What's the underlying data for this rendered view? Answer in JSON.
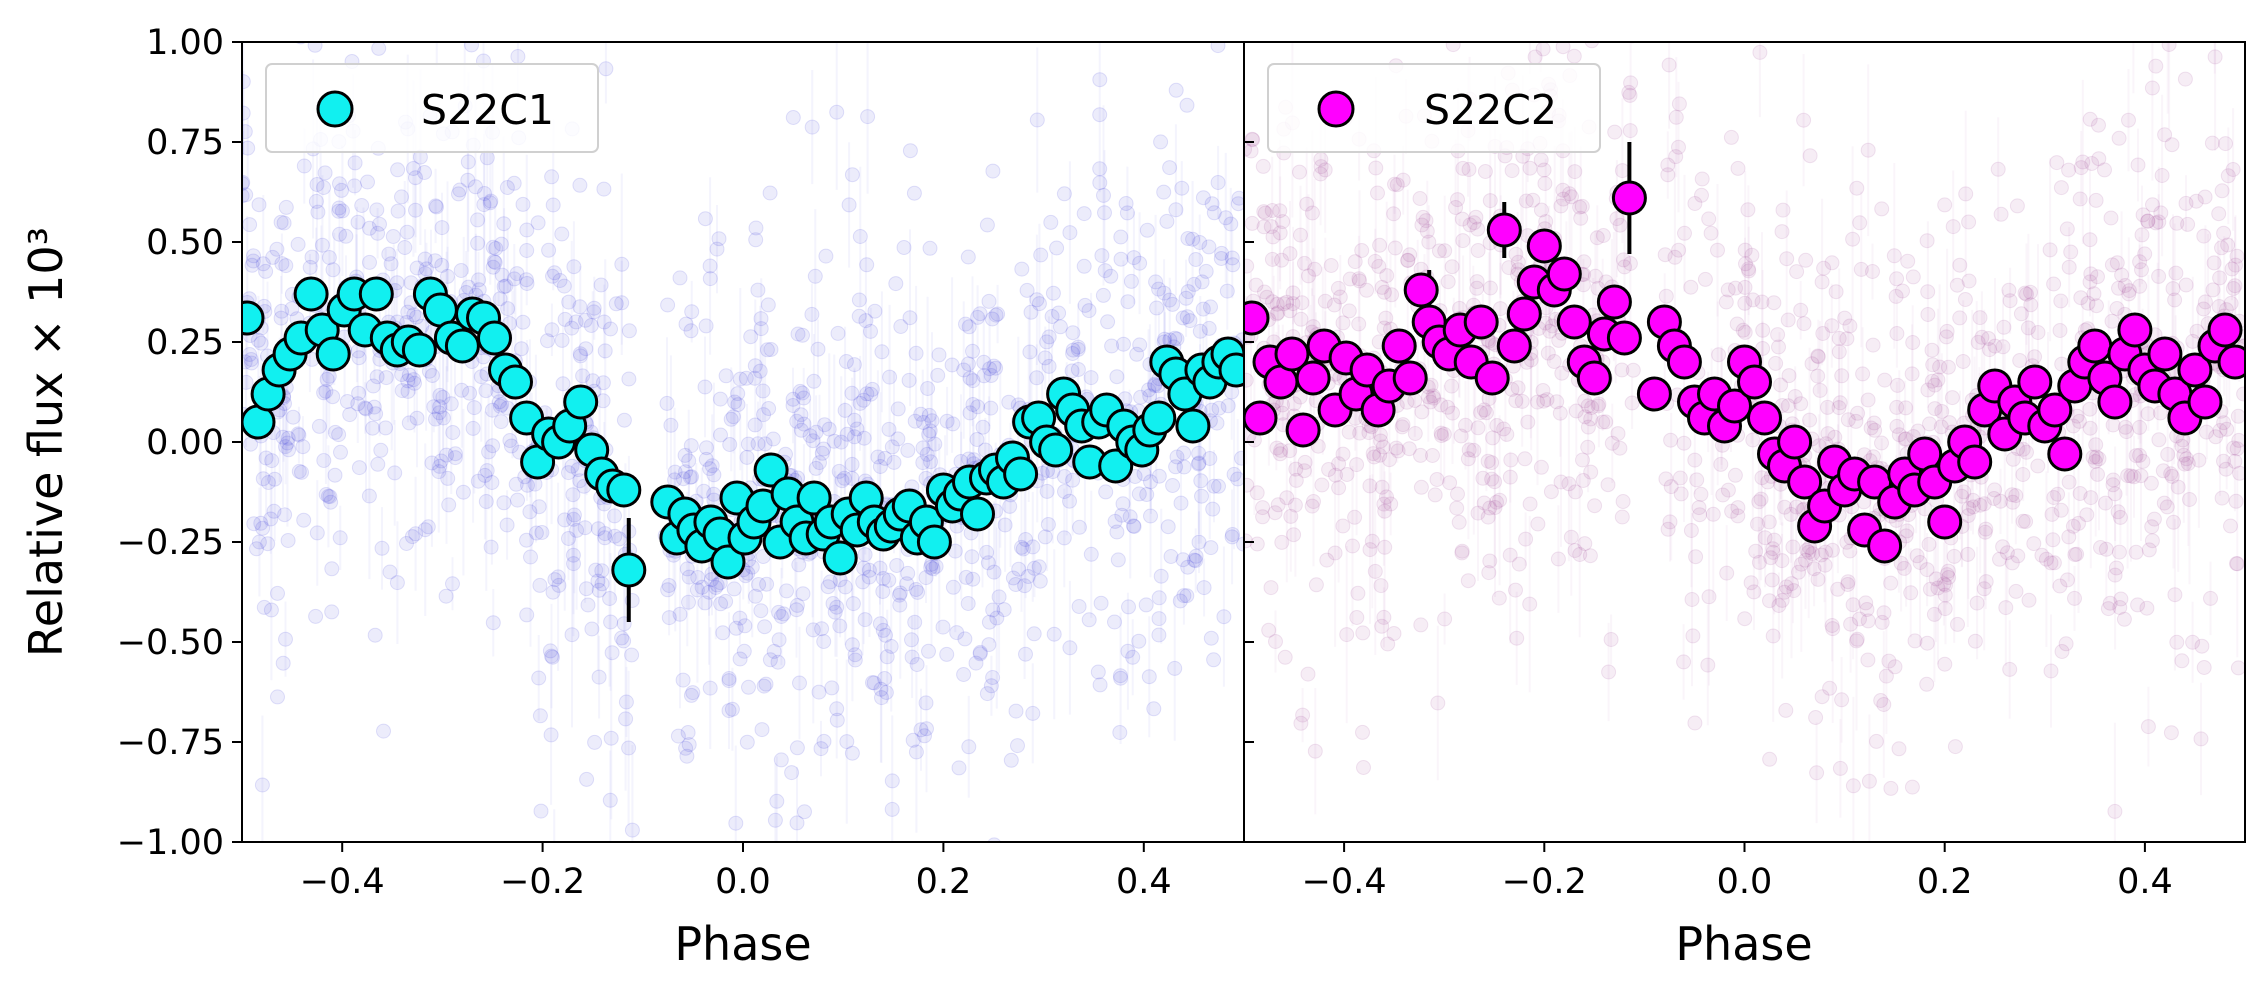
{
  "chart_data": [
    {
      "type": "scatter",
      "panel": "left",
      "xlabel": "Phase",
      "ylabel": "Relative flux × 10³",
      "xlim": [
        -0.5,
        0.5
      ],
      "ylim": [
        -1.0,
        1.0
      ],
      "xticks": [
        -0.4,
        -0.2,
        0.0,
        0.2,
        0.4
      ],
      "xtick_labels": [
        "−0.4",
        "−0.2",
        "0.0",
        "0.2",
        "0.4"
      ],
      "yticks": [
        -1.0,
        -0.75,
        -0.5,
        -0.25,
        0.0,
        0.25,
        0.5,
        0.75,
        1.0
      ],
      "ytick_labels": [
        "−1.00",
        "−0.75",
        "−0.50",
        "−0.25",
        "0.00",
        "0.25",
        "0.50",
        "0.75",
        "1.00"
      ],
      "legend": {
        "label": "S22C1",
        "location": "upper-left"
      },
      "gap": [
        -0.08,
        -0.11
      ],
      "raw_color": "#2a2ad8",
      "binned_color": "#11f0f0",
      "binned": {
        "x": [
          -0.495,
          -0.484,
          -0.474,
          -0.463,
          -0.452,
          -0.441,
          -0.431,
          -0.42,
          -0.409,
          -0.398,
          -0.388,
          -0.377,
          -0.366,
          -0.355,
          -0.345,
          -0.334,
          -0.323,
          -0.312,
          -0.302,
          -0.291,
          -0.28,
          -0.27,
          -0.259,
          -0.248,
          -0.237,
          -0.227,
          -0.216,
          -0.205,
          -0.194,
          -0.184,
          -0.173,
          -0.162,
          -0.151,
          -0.141,
          -0.13,
          -0.119,
          -0.114,
          -0.075,
          -0.066,
          -0.058,
          -0.049,
          -0.041,
          -0.032,
          -0.023,
          -0.015,
          -0.006,
          0.002,
          0.011,
          0.02,
          0.028,
          0.037,
          0.045,
          0.054,
          0.063,
          0.071,
          0.08,
          0.088,
          0.097,
          0.105,
          0.114,
          0.123,
          0.131,
          0.14,
          0.148,
          0.157,
          0.166,
          0.174,
          0.183,
          0.191,
          0.2,
          0.209,
          0.217,
          0.226,
          0.234,
          0.243,
          0.252,
          0.26,
          0.269,
          0.277,
          0.286,
          0.295,
          0.303,
          0.312,
          0.32,
          0.329,
          0.338,
          0.346,
          0.355,
          0.363,
          0.372,
          0.38,
          0.389,
          0.398,
          0.406,
          0.415,
          0.423,
          0.432,
          0.441,
          0.449,
          0.458,
          0.466,
          0.475,
          0.484,
          0.492
        ],
        "y": [
          0.31,
          0.05,
          0.12,
          0.18,
          0.22,
          0.26,
          0.37,
          0.28,
          0.22,
          0.33,
          0.37,
          0.28,
          0.37,
          0.26,
          0.23,
          0.25,
          0.23,
          0.37,
          0.33,
          0.26,
          0.24,
          0.32,
          0.31,
          0.26,
          0.18,
          0.15,
          0.06,
          -0.05,
          0.02,
          0.0,
          0.04,
          0.1,
          -0.02,
          -0.08,
          -0.11,
          -0.12,
          -0.32,
          -0.15,
          -0.24,
          -0.18,
          -0.22,
          -0.26,
          -0.2,
          -0.23,
          -0.3,
          -0.14,
          -0.24,
          -0.2,
          -0.16,
          -0.07,
          -0.25,
          -0.13,
          -0.2,
          -0.24,
          -0.14,
          -0.23,
          -0.2,
          -0.29,
          -0.18,
          -0.22,
          -0.14,
          -0.2,
          -0.23,
          -0.21,
          -0.18,
          -0.16,
          -0.24,
          -0.2,
          -0.25,
          -0.12,
          -0.16,
          -0.13,
          -0.1,
          -0.18,
          -0.09,
          -0.07,
          -0.1,
          -0.04,
          -0.08,
          0.05,
          0.06,
          0.0,
          -0.02,
          0.12,
          0.08,
          0.04,
          -0.05,
          0.05,
          0.08,
          -0.06,
          0.04,
          0.0,
          -0.02,
          0.03,
          0.06,
          0.2,
          0.17,
          0.12,
          0.04,
          0.18,
          0.15,
          0.2,
          0.22,
          0.18
        ],
        "errors": [
          {
            "x": -0.114,
            "y": -0.32,
            "err": 0.13
          }
        ]
      }
    },
    {
      "type": "scatter",
      "panel": "right",
      "xlabel": "Phase",
      "xlim": [
        -0.5,
        0.5
      ],
      "ylim": [
        -1.0,
        1.0
      ],
      "xticks": [
        -0.4,
        -0.2,
        0.0,
        0.2,
        0.4
      ],
      "xtick_labels": [
        "−0.4",
        "−0.2",
        "0.0",
        "0.2",
        "0.4"
      ],
      "legend": {
        "label": "S22C2",
        "location": "upper-left"
      },
      "gap": [
        -0.08,
        -0.11
      ],
      "raw_color": "#9c3a94",
      "binned_color": "#ff00ff",
      "binned": {
        "x": [
          -0.492,
          -0.484,
          -0.474,
          -0.463,
          -0.452,
          -0.441,
          -0.431,
          -0.42,
          -0.409,
          -0.398,
          -0.388,
          -0.377,
          -0.366,
          -0.355,
          -0.345,
          -0.334,
          -0.323,
          -0.315,
          -0.305,
          -0.295,
          -0.284,
          -0.273,
          -0.263,
          -0.252,
          -0.24,
          -0.23,
          -0.22,
          -0.21,
          -0.2,
          -0.19,
          -0.18,
          -0.17,
          -0.16,
          -0.15,
          -0.14,
          -0.13,
          -0.12,
          -0.115,
          -0.09,
          -0.08,
          -0.07,
          -0.06,
          -0.05,
          -0.04,
          -0.03,
          -0.02,
          -0.01,
          0.0,
          0.01,
          0.02,
          0.03,
          0.04,
          0.05,
          0.06,
          0.07,
          0.08,
          0.09,
          0.1,
          0.11,
          0.12,
          0.13,
          0.14,
          0.15,
          0.16,
          0.17,
          0.18,
          0.19,
          0.2,
          0.21,
          0.22,
          0.23,
          0.24,
          0.25,
          0.26,
          0.27,
          0.28,
          0.29,
          0.3,
          0.31,
          0.32,
          0.33,
          0.34,
          0.35,
          0.36,
          0.37,
          0.38,
          0.39,
          0.4,
          0.41,
          0.42,
          0.43,
          0.44,
          0.45,
          0.46,
          0.47,
          0.48,
          0.49
        ],
        "y": [
          0.31,
          0.06,
          0.2,
          0.15,
          0.22,
          0.03,
          0.16,
          0.24,
          0.08,
          0.21,
          0.12,
          0.18,
          0.08,
          0.14,
          0.24,
          0.16,
          0.38,
          0.3,
          0.25,
          0.22,
          0.28,
          0.2,
          0.3,
          0.16,
          0.53,
          0.24,
          0.32,
          0.4,
          0.49,
          0.38,
          0.42,
          0.3,
          0.2,
          0.16,
          0.27,
          0.35,
          0.26,
          0.61,
          0.12,
          0.3,
          0.24,
          0.2,
          0.1,
          0.06,
          0.12,
          0.04,
          0.09,
          0.2,
          0.15,
          0.06,
          -0.03,
          -0.06,
          0.0,
          -0.1,
          -0.21,
          -0.16,
          -0.05,
          -0.12,
          -0.08,
          -0.22,
          -0.1,
          -0.26,
          -0.15,
          -0.08,
          -0.12,
          -0.03,
          -0.1,
          -0.2,
          -0.06,
          0.0,
          -0.05,
          0.08,
          0.14,
          0.02,
          0.1,
          0.06,
          0.15,
          0.04,
          0.08,
          -0.03,
          0.14,
          0.2,
          0.24,
          0.16,
          0.1,
          0.22,
          0.28,
          0.18,
          0.14,
          0.22,
          0.12,
          0.06,
          0.18,
          0.1,
          0.24,
          0.28,
          0.2
        ],
        "errors": [
          {
            "x": -0.115,
            "y": 0.61,
            "err": 0.14
          },
          {
            "x": -0.24,
            "y": 0.53,
            "err": 0.07
          },
          {
            "x": -0.315,
            "y": 0.38,
            "err": 0.05
          }
        ]
      }
    }
  ]
}
